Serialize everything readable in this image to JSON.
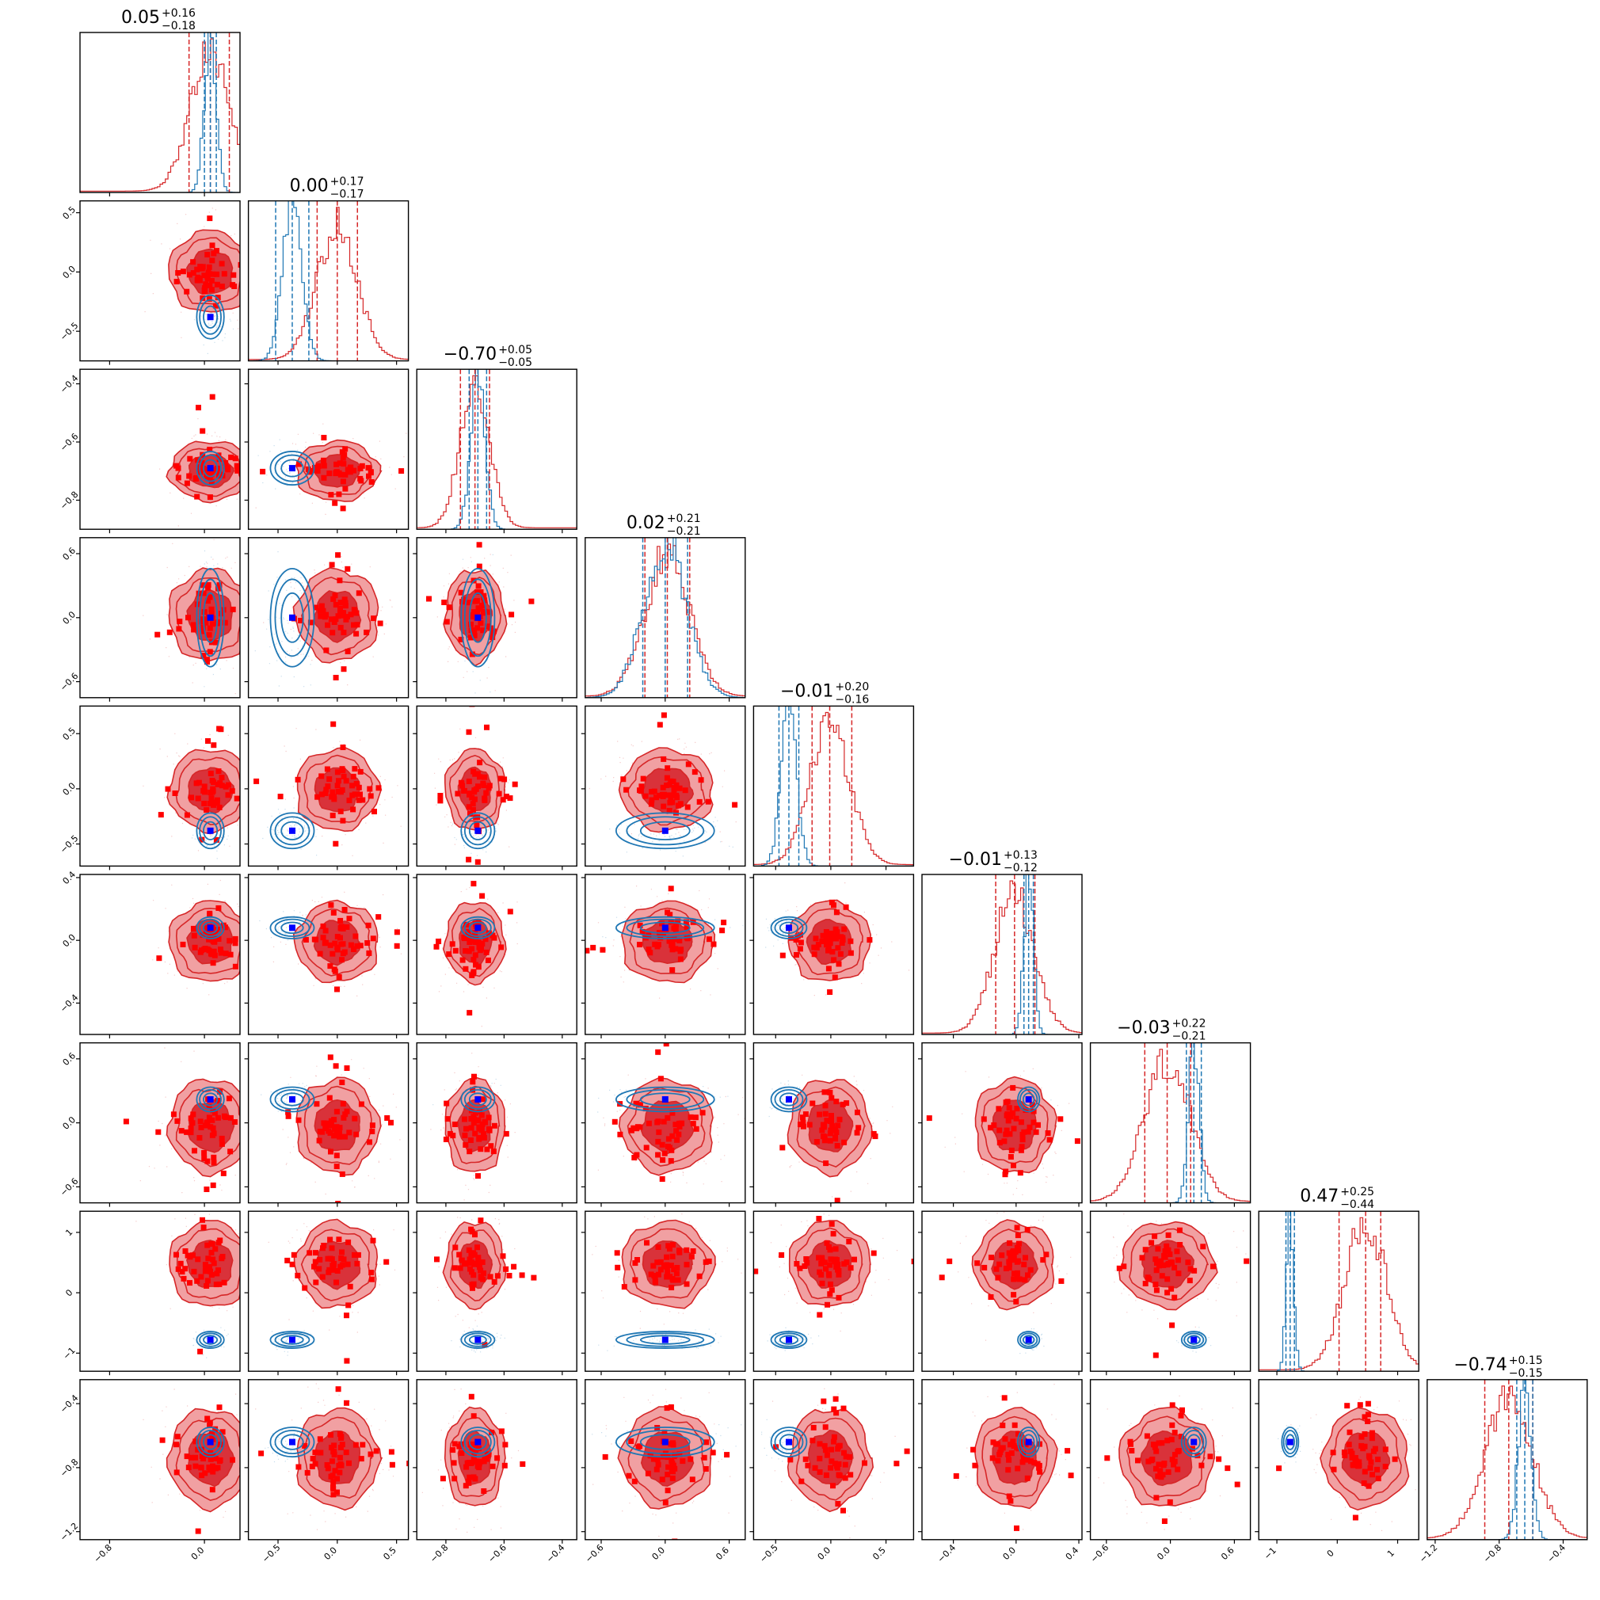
{
  "colors": {
    "posterior_a": "#d62728",
    "posterior_a_fill_outer": "#f1a0a2",
    "posterior_a_fill_inner": "#d9323a",
    "posterior_b": "#1f77b4",
    "markers_a": "#ff0000",
    "markers_b": "#0000ff"
  },
  "chart_data": {
    "type": "corner",
    "n_params": 9,
    "grid": false,
    "params": [
      {
        "range": [
          -1.05,
          0.3
        ],
        "ticks": [
          -0.8,
          0.0
        ],
        "tick_labels": [
          "−0.8",
          "0.0"
        ],
        "median_a": 0.05,
        "plus_a": 0.16,
        "minus_a": 0.18,
        "median_b": 0.05,
        "plus_b": 0.05,
        "minus_b": 0.05,
        "sigma_b": 0.05,
        "marker": 0.05
      },
      {
        "range": [
          -0.75,
          0.6
        ],
        "ticks": [
          -0.5,
          0.0,
          0.5
        ],
        "tick_labels": [
          "−0.5",
          "0.0",
          "0.5"
        ],
        "median_a": 0.0,
        "plus_a": 0.17,
        "minus_a": 0.17,
        "median_b": -0.38,
        "plus_b": 0.14,
        "minus_b": 0.14,
        "sigma_b": 0.08,
        "marker": -0.38
      },
      {
        "range": [
          -0.9,
          -0.35
        ],
        "ticks": [
          -0.8,
          -0.6,
          -0.4
        ],
        "tick_labels": [
          "−0.8",
          "−0.6",
          "−0.4"
        ],
        "median_a": -0.7,
        "plus_a": 0.05,
        "minus_a": 0.05,
        "median_b": -0.69,
        "plus_b": 0.03,
        "minus_b": 0.03,
        "sigma_b": 0.025,
        "marker": -0.69
      },
      {
        "range": [
          -0.75,
          0.75
        ],
        "ticks": [
          -0.6,
          0.0,
          0.6
        ],
        "tick_labels": [
          "−0.6",
          "0.0",
          "0.6"
        ],
        "median_a": 0.02,
        "plus_a": 0.21,
        "minus_a": 0.21,
        "median_b": 0.0,
        "plus_b": 0.21,
        "minus_b": 0.21,
        "sigma_b": 0.2,
        "marker": 0.0
      },
      {
        "range": [
          -0.7,
          0.75
        ],
        "ticks": [
          -0.5,
          0.0,
          0.5
        ],
        "tick_labels": [
          "−0.5",
          "0.0",
          "0.5"
        ],
        "median_a": -0.01,
        "plus_a": 0.2,
        "minus_a": 0.16,
        "median_b": -0.38,
        "plus_b": 0.09,
        "minus_b": 0.09,
        "sigma_b": 0.07,
        "marker": -0.38
      },
      {
        "range": [
          -0.6,
          0.42
        ],
        "ticks": [
          -0.4,
          0.0,
          0.4
        ],
        "tick_labels": [
          "−0.4",
          "0.0",
          "0.4"
        ],
        "median_a": -0.01,
        "plus_a": 0.13,
        "minus_a": 0.12,
        "median_b": 0.08,
        "plus_b": 0.03,
        "minus_b": 0.03,
        "sigma_b": 0.03,
        "marker": 0.08
      },
      {
        "range": [
          -0.75,
          0.75
        ],
        "ticks": [
          -0.6,
          0.0,
          0.6
        ],
        "tick_labels": [
          "−0.6",
          "0.0",
          "0.6"
        ],
        "median_a": -0.03,
        "plus_a": 0.22,
        "minus_a": 0.21,
        "median_b": 0.22,
        "plus_b": 0.07,
        "minus_b": 0.07,
        "sigma_b": 0.05,
        "marker": 0.22
      },
      {
        "range": [
          -1.3,
          1.35
        ],
        "ticks": [
          -1,
          0,
          1
        ],
        "tick_labels": [
          "−1",
          "0",
          "1"
        ],
        "median_a": 0.47,
        "plus_a": 0.25,
        "minus_a": 0.44,
        "median_b": -0.78,
        "plus_b": 0.07,
        "minus_b": 0.07,
        "sigma_b": 0.06,
        "marker": -0.78
      },
      {
        "range": [
          -1.25,
          -0.25
        ],
        "ticks": [
          -1.2,
          -0.8,
          -0.4
        ],
        "tick_labels": [
          "−1.2",
          "−0.8",
          "−0.4"
        ],
        "median_a": -0.74,
        "plus_a": 0.15,
        "minus_a": 0.15,
        "median_b": -0.64,
        "plus_b": 0.05,
        "minus_b": 0.05,
        "sigma_b": 0.04,
        "marker": -0.64
      }
    ],
    "titles": [
      {
        "main": "0.05",
        "sup": "+0.16",
        "sub": "−0.18"
      },
      {
        "main": "0.00",
        "sup": "+0.17",
        "sub": "−0.17"
      },
      {
        "main": "−0.70",
        "sup": "+0.05",
        "sub": "−0.05"
      },
      {
        "main": "0.02",
        "sup": "+0.21",
        "sub": "−0.21"
      },
      {
        "main": "−0.01",
        "sup": "+0.20",
        "sub": "−0.16"
      },
      {
        "main": "−0.01",
        "sup": "+0.13",
        "sub": "−0.12"
      },
      {
        "main": "−0.03",
        "sup": "+0.22",
        "sub": "−0.21"
      },
      {
        "main": "0.47",
        "sup": "+0.25",
        "sub": "−0.44"
      },
      {
        "main": "−0.74",
        "sup": "+0.15",
        "sub": "−0.15"
      }
    ]
  }
}
